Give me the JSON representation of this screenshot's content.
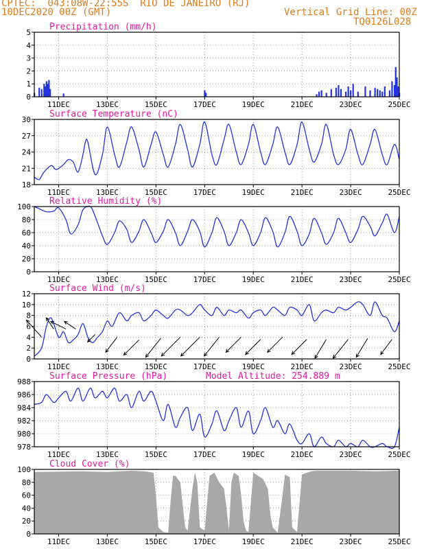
{
  "header": {
    "line1": "CPTEC:  043:08W-22:55S  RIO DE JANEIRO (RJ)",
    "line2": "10DEC2020 00Z (GMT)",
    "right1": "Vertical Grid Line: 00Z",
    "right2": "TQ0126L028"
  },
  "x_ticks": [
    "11DEC",
    "13DEC",
    "15DEC",
    "17DEC",
    "19DEC",
    "21DEC",
    "23DEC",
    "25DEC"
  ],
  "colors": {
    "header": "#e07b1a",
    "title": "#e8199c",
    "series": "#2233dd",
    "cloud": "#a8a8a8"
  },
  "chart_data": [
    {
      "type": "bar",
      "title": "Precipitation (mm/h)",
      "ylim": [
        0,
        5
      ],
      "yticks": [
        "0",
        "1",
        "2",
        "3",
        "4",
        "5"
      ],
      "x_days": [
        10.0,
        10.2,
        10.3,
        10.4,
        10.45,
        10.5,
        10.55,
        10.6,
        10.65,
        11.2,
        17.0,
        17.05,
        21.6,
        21.7,
        21.8,
        22.0,
        22.2,
        22.4,
        22.5,
        22.6,
        22.8,
        22.9,
        23.0,
        23.1,
        23.3,
        23.6,
        23.8,
        24.0,
        24.1,
        24.2,
        24.3,
        24.4,
        24.6,
        24.7,
        24.8,
        24.85,
        24.9,
        24.95,
        25.0
      ],
      "values": [
        0.3,
        0.7,
        0.6,
        1.0,
        0.8,
        1.2,
        1.0,
        1.3,
        0.6,
        0.25,
        0.5,
        0.3,
        0.2,
        0.4,
        0.5,
        0.3,
        0.6,
        0.7,
        0.9,
        0.6,
        0.4,
        0.8,
        0.5,
        1.0,
        0.4,
        0.8,
        0.5,
        0.7,
        0.6,
        0.5,
        0.4,
        0.8,
        0.5,
        1.2,
        0.9,
        2.3,
        1.5,
        0.8,
        0.3
      ]
    },
    {
      "type": "line",
      "title": "Surface Temperature (nC)",
      "ylim": [
        18,
        31
      ],
      "yticks": [
        "18",
        "21",
        "24",
        "27",
        "30"
      ],
      "x": [
        10.0,
        10.2,
        10.4,
        10.7,
        10.9,
        11.2,
        11.4,
        11.6,
        11.8,
        12.0,
        12.1,
        12.2,
        12.5,
        12.8,
        13.0,
        13.3,
        13.5,
        13.8,
        14.0,
        14.3,
        14.5,
        14.8,
        15.0,
        15.3,
        15.5,
        15.8,
        16.0,
        16.3,
        16.5,
        16.8,
        17.0,
        17.3,
        17.5,
        17.8,
        18.0,
        18.3,
        18.5,
        18.8,
        19.0,
        19.3,
        19.5,
        19.8,
        20.0,
        20.3,
        20.5,
        20.8,
        21.0,
        21.3,
        21.5,
        21.8,
        22.0,
        22.3,
        22.5,
        22.8,
        23.0,
        23.3,
        23.5,
        23.8,
        24.0,
        24.3,
        24.5,
        24.8,
        25.0
      ],
      "y": [
        19.5,
        19,
        20.5,
        21.8,
        21,
        22,
        23,
        22.5,
        20.5,
        24,
        26.5,
        26.5,
        20,
        24,
        29.5,
        24,
        21.5,
        26.5,
        29.5,
        25,
        21.5,
        26,
        28.5,
        24,
        21.5,
        26,
        30,
        25,
        21.5,
        26,
        30.5,
        24,
        22,
        27,
        30,
        24.5,
        22,
        26,
        30,
        24.5,
        22,
        26,
        29.5,
        24.5,
        22,
        26,
        30.5,
        25,
        22.5,
        26,
        30,
        24,
        22,
        25,
        29,
        24,
        22,
        26,
        29,
        24,
        22,
        26,
        23
      ]
    },
    {
      "type": "line",
      "title": "Relative Humidity (%)",
      "ylim": [
        0,
        100
      ],
      "yticks": [
        "0",
        "20",
        "40",
        "60",
        "80",
        "100"
      ],
      "x": [
        10.0,
        10.3,
        10.5,
        10.8,
        11.0,
        11.3,
        11.5,
        11.8,
        12.0,
        12.3,
        12.5,
        12.8,
        13.0,
        13.3,
        13.5,
        13.8,
        14.0,
        14.3,
        14.5,
        14.8,
        15.0,
        15.3,
        15.5,
        15.8,
        16.0,
        16.3,
        16.5,
        16.8,
        17.0,
        17.3,
        17.5,
        17.8,
        18.0,
        18.3,
        18.5,
        18.8,
        19.0,
        19.3,
        19.5,
        19.8,
        20.0,
        20.3,
        20.5,
        20.8,
        21.0,
        21.3,
        21.5,
        21.8,
        22.0,
        22.3,
        22.5,
        22.8,
        23.0,
        23.3,
        23.5,
        23.8,
        24.0,
        24.3,
        24.5,
        24.8,
        25.0
      ],
      "y": [
        100,
        95,
        92,
        93,
        98,
        80,
        58,
        72,
        95,
        100,
        85,
        55,
        42,
        60,
        78,
        65,
        45,
        62,
        80,
        60,
        45,
        62,
        80,
        60,
        40,
        62,
        80,
        62,
        38,
        60,
        83,
        62,
        40,
        60,
        80,
        60,
        40,
        60,
        83,
        62,
        38,
        60,
        85,
        62,
        40,
        58,
        82,
        60,
        42,
        60,
        82,
        60,
        45,
        65,
        85,
        70,
        55,
        75,
        88,
        60,
        85
      ]
    },
    {
      "type": "line",
      "title": "Surface Wind (m/s)",
      "ylim": [
        0,
        12
      ],
      "yticks": [
        "0",
        "2",
        "4",
        "6",
        "8",
        "10",
        "12"
      ],
      "x": [
        10.0,
        10.3,
        10.5,
        10.7,
        11.0,
        11.2,
        11.4,
        11.6,
        11.8,
        12.0,
        12.2,
        12.4,
        12.6,
        12.8,
        13.0,
        13.2,
        13.5,
        13.8,
        14.0,
        14.3,
        14.5,
        14.8,
        15.0,
        15.3,
        15.5,
        15.8,
        16.0,
        16.3,
        16.5,
        16.8,
        17.0,
        17.3,
        17.5,
        17.8,
        18.0,
        18.3,
        18.5,
        18.8,
        19.0,
        19.3,
        19.5,
        19.8,
        20.0,
        20.3,
        20.5,
        20.8,
        21.0,
        21.3,
        21.5,
        21.8,
        22.0,
        22.3,
        22.5,
        22.8,
        23.0,
        23.3,
        23.5,
        23.8,
        24.0,
        24.3,
        24.5,
        24.8,
        25.0
      ],
      "y": [
        0.5,
        2,
        6,
        7.5,
        4,
        5,
        3,
        3.5,
        4.5,
        6.5,
        4,
        3,
        4,
        5,
        7,
        6,
        8.5,
        7,
        8,
        8.5,
        7,
        8,
        9,
        8,
        7.5,
        9,
        9,
        8,
        8.5,
        10,
        9,
        8,
        9.5,
        8,
        9,
        8.5,
        9,
        7.5,
        8.5,
        9,
        8,
        9.5,
        9,
        8,
        9.5,
        9,
        8,
        10,
        7,
        8.5,
        9,
        8.5,
        9.5,
        9,
        9.5,
        10.5,
        10,
        8,
        10.5,
        8,
        7.5,
        5,
        7
      ]
    },
    {
      "type": "line",
      "title": "Surface Pressure (hPa)",
      "annotation": "Model Altitude: 254.889 m",
      "ylim": [
        978,
        988
      ],
      "yticks": [
        "978",
        "980",
        "982",
        "984",
        "986",
        "988"
      ],
      "x": [
        10.0,
        10.3,
        10.5,
        10.8,
        11.0,
        11.3,
        11.5,
        11.8,
        12.0,
        12.3,
        12.5,
        12.8,
        13.0,
        13.3,
        13.5,
        13.8,
        14.0,
        14.3,
        14.5,
        14.8,
        15.0,
        15.3,
        15.5,
        15.8,
        16.0,
        16.3,
        16.5,
        16.8,
        17.0,
        17.3,
        17.5,
        17.8,
        18.0,
        18.3,
        18.5,
        18.8,
        19.0,
        19.3,
        19.5,
        19.8,
        20.0,
        20.3,
        20.5,
        20.8,
        21.0,
        21.3,
        21.5,
        21.8,
        22.0,
        22.3,
        22.5,
        22.8,
        23.0,
        23.3,
        23.5,
        23.8,
        24.0,
        24.3,
        24.5,
        24.8,
        25.0
      ],
      "y": [
        984.5,
        984.8,
        986,
        984.8,
        985.5,
        986.5,
        985,
        987,
        985,
        987,
        985.5,
        986.5,
        985.5,
        987,
        985,
        986,
        984,
        986.5,
        985,
        986.5,
        985,
        982,
        984.5,
        981,
        982.5,
        984,
        980.5,
        983,
        979.5,
        981.5,
        983.5,
        980.5,
        982,
        984,
        981,
        983.5,
        980,
        982,
        984,
        981,
        982,
        980,
        981.5,
        979,
        978.5,
        980,
        978,
        979.5,
        978.5,
        977.5,
        979,
        977.5,
        978.5,
        977.5,
        979,
        978,
        977.5,
        978.5,
        978,
        977.5,
        981
      ]
    },
    {
      "type": "area",
      "title": "Cloud Cover (%)",
      "ylim": [
        0,
        100
      ],
      "yticks": [
        "0",
        "20",
        "40",
        "60",
        "80",
        "100"
      ],
      "x": [
        10.0,
        12.0,
        13.0,
        14.0,
        14.5,
        14.9,
        15.0,
        15.1,
        15.3,
        15.5,
        15.6,
        15.7,
        15.8,
        16.0,
        16.2,
        16.3,
        16.5,
        16.6,
        16.7,
        16.8,
        17.0,
        17.2,
        17.4,
        17.6,
        17.8,
        17.9,
        18.0,
        18.1,
        18.2,
        18.4,
        18.5,
        18.6,
        18.7,
        18.8,
        19.0,
        19.2,
        19.4,
        19.6,
        19.7,
        19.8,
        20.0,
        20.2,
        20.3,
        20.5,
        20.6,
        20.8,
        21.0,
        21.2,
        21.4,
        21.6,
        22.0,
        23.0,
        24.0,
        25.0
      ],
      "y": [
        96,
        97,
        96,
        98,
        97,
        95,
        60,
        10,
        3,
        2,
        50,
        90,
        90,
        80,
        10,
        5,
        70,
        95,
        80,
        10,
        5,
        90,
        95,
        80,
        70,
        40,
        5,
        80,
        95,
        90,
        60,
        20,
        5,
        3,
        95,
        90,
        85,
        70,
        30,
        10,
        2,
        60,
        92,
        88,
        10,
        3,
        92,
        95,
        97,
        98,
        98,
        98,
        97,
        98
      ]
    }
  ],
  "wind_arrows": {
    "x_days": [
      10.3,
      10.8,
      11.3,
      11.7,
      12.5,
      13.4,
      14.3,
      15.2,
      16.0,
      16.8,
      17.6,
      18.5,
      19.3,
      20.2,
      21.2,
      22.0,
      22.9,
      23.7,
      24.7
    ],
    "anchor_ms": [
      4,
      5.5,
      5.5,
      5.5,
      4.5,
      4,
      3.5,
      3.8,
      4,
      4,
      4,
      4,
      3.6,
      4,
      3.6,
      3.6,
      3.6,
      3.8,
      3.6
    ],
    "u": [
      -4,
      -2,
      -4,
      -3,
      -2,
      -3,
      -4,
      -4,
      -5,
      -5,
      -4,
      -4,
      -4,
      -4,
      -4,
      -3,
      -4,
      -3,
      -3
    ],
    "v": [
      4.5,
      3,
      2,
      2,
      -2,
      -4,
      -4,
      -5,
      -5,
      -5,
      -5,
      -4,
      -4,
      -4,
      -4,
      -5,
      -5,
      -5,
      -4
    ]
  }
}
